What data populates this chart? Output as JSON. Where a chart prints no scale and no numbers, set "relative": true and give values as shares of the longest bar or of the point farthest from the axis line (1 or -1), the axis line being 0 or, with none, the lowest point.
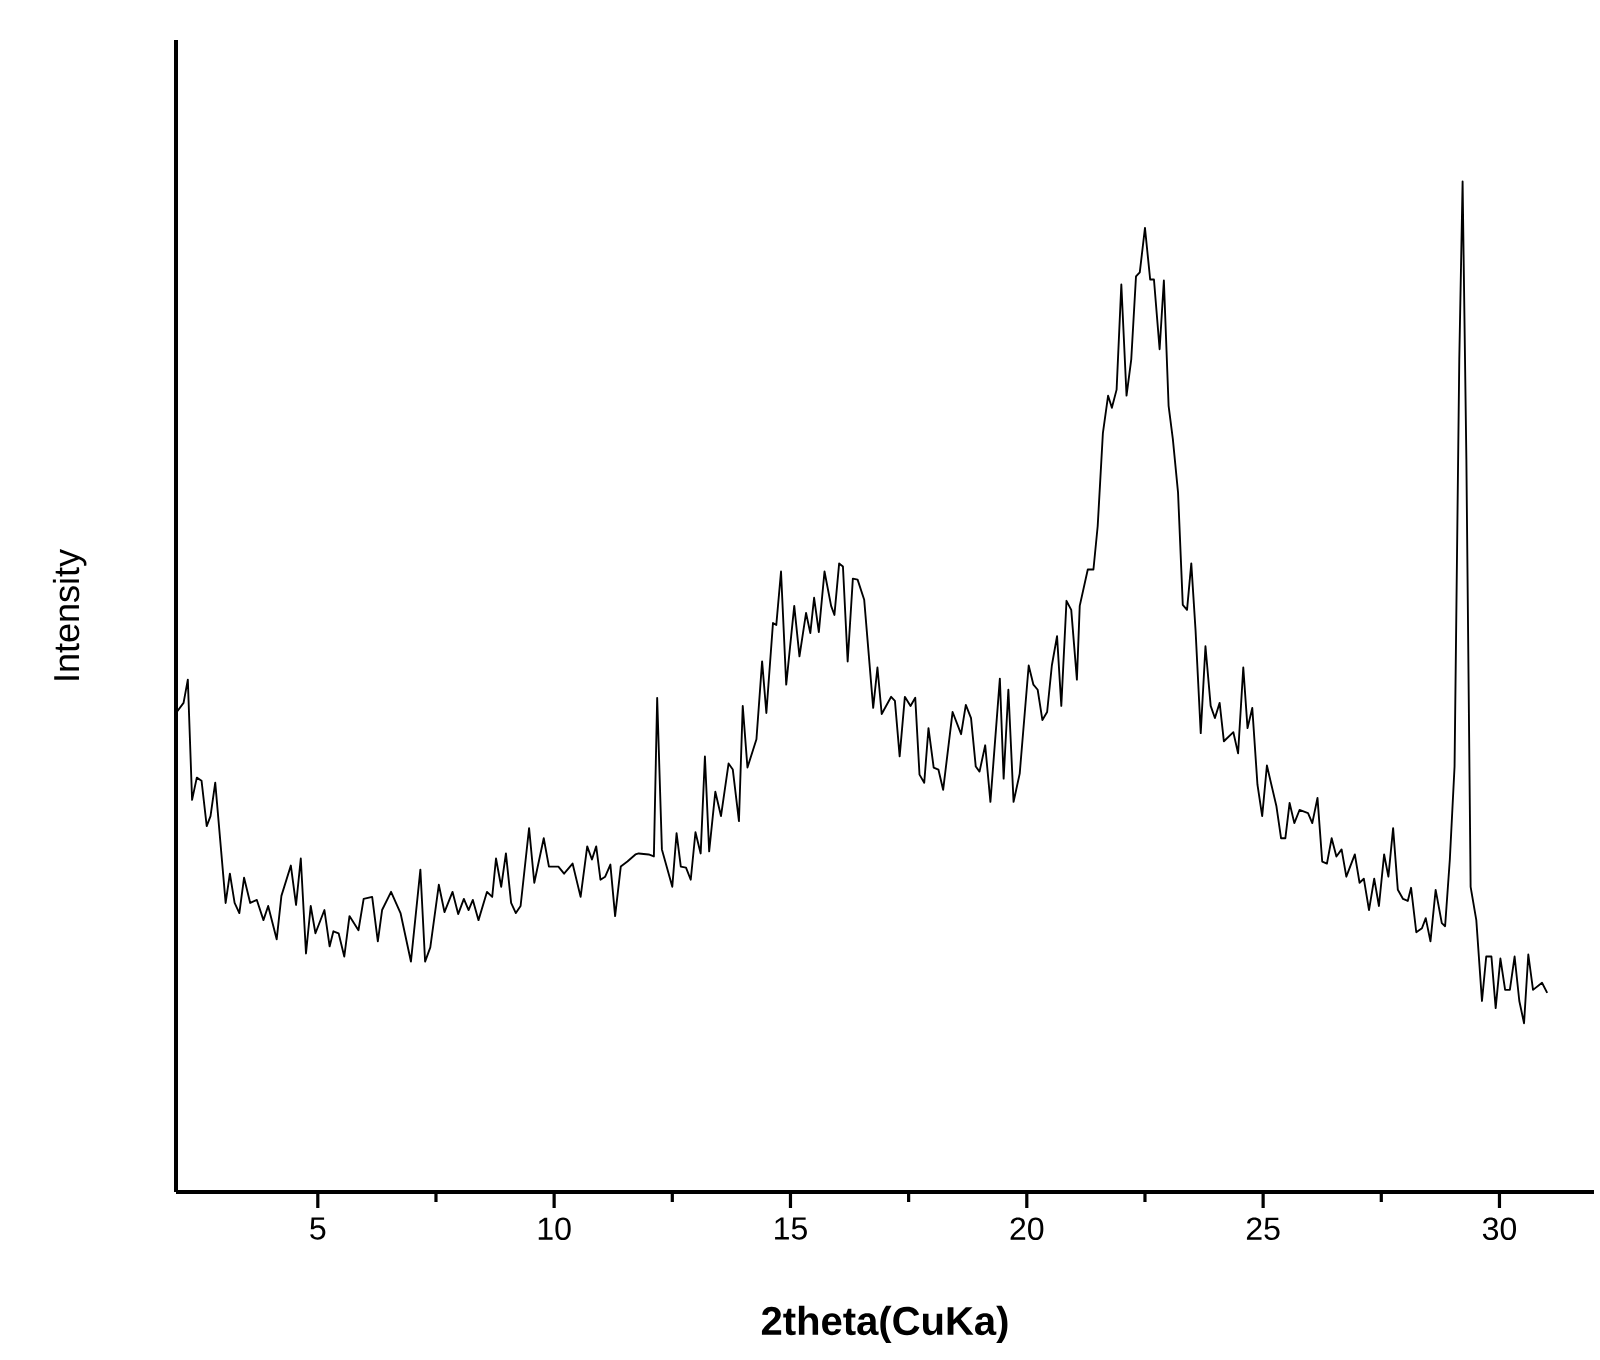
{
  "chart_data": {
    "type": "line",
    "relative": true,
    "xlabel": "2theta(CuKa)",
    "ylabel": "Intensity",
    "xlim": [
      2,
      32
    ],
    "xticks": [
      5,
      10,
      15,
      20,
      25,
      30
    ],
    "series": [
      {
        "color": "#000000",
        "x": [
          2.0,
          2.16,
          2.25,
          2.34,
          2.44,
          2.54,
          2.65,
          2.73,
          2.83,
          3.05,
          3.14,
          3.24,
          3.34,
          3.44,
          3.57,
          3.71,
          3.85,
          3.95,
          4.13,
          4.23,
          4.43,
          4.54,
          4.64,
          4.75,
          4.85,
          4.95,
          5.14,
          5.25,
          5.33,
          5.44,
          5.56,
          5.67,
          5.86,
          5.97,
          6.15,
          6.27,
          6.36,
          6.55,
          6.75,
          6.97,
          7.17,
          7.27,
          7.38,
          7.56,
          7.68,
          7.85,
          7.97,
          8.09,
          8.19,
          8.28,
          8.4,
          8.58,
          8.69,
          8.77,
          8.88,
          8.98,
          9.09,
          9.19,
          9.29,
          9.47,
          9.58,
          9.78,
          9.89,
          10.09,
          10.21,
          10.39,
          10.56,
          10.7,
          10.8,
          10.89,
          10.98,
          11.08,
          11.19,
          11.29,
          11.41,
          11.55,
          11.72,
          11.79,
          12.0,
          12.11,
          12.18,
          12.28,
          12.5,
          12.59,
          12.68,
          12.79,
          12.89,
          12.99,
          13.1,
          13.19,
          13.28,
          13.41,
          13.53,
          13.69,
          13.78,
          13.91,
          13.99,
          14.09,
          14.28,
          14.4,
          14.49,
          14.63,
          14.7,
          14.8,
          14.91,
          15.08,
          15.19,
          15.33,
          15.42,
          15.5,
          15.6,
          15.72,
          15.86,
          15.93,
          16.03,
          16.11,
          16.21,
          16.32,
          16.42,
          16.56,
          16.75,
          16.84,
          16.93,
          17.13,
          17.21,
          17.31,
          17.42,
          17.54,
          17.64,
          17.73,
          17.83,
          17.92,
          18.03,
          18.13,
          18.23,
          18.43,
          18.61,
          18.71,
          18.82,
          18.92,
          19.0,
          19.12,
          19.23,
          19.43,
          19.51,
          19.61,
          19.72,
          19.85,
          20.04,
          20.14,
          20.23,
          20.33,
          20.43,
          20.53,
          20.64,
          20.73,
          20.84,
          20.94,
          21.06,
          21.12,
          21.29,
          21.41,
          21.5,
          21.61,
          21.72,
          21.8,
          21.9,
          22.0,
          22.11,
          22.21,
          22.31,
          22.39,
          22.5,
          22.61,
          22.69,
          22.81,
          22.9,
          23.0,
          23.09,
          23.2,
          23.3,
          23.39,
          23.48,
          23.57,
          23.68,
          23.78,
          23.89,
          23.98,
          24.08,
          24.17,
          24.37,
          24.47,
          24.58,
          24.67,
          24.77,
          24.88,
          24.98,
          25.08,
          25.28,
          25.38,
          25.47,
          25.56,
          25.66,
          25.77,
          25.95,
          26.04,
          26.15,
          26.25,
          26.35,
          26.45,
          26.55,
          26.66,
          26.76,
          26.94,
          27.04,
          27.13,
          27.24,
          27.35,
          27.45,
          27.56,
          27.65,
          27.75,
          27.85,
          27.96,
          28.06,
          28.13,
          28.24,
          28.36,
          28.44,
          28.54,
          28.65,
          28.78,
          28.85,
          28.95,
          29.05,
          29.15,
          29.22,
          29.3,
          29.39,
          29.51,
          29.63,
          29.72,
          29.83,
          29.92,
          30.02,
          30.12,
          30.22,
          30.32,
          30.42,
          30.52,
          30.61,
          30.71,
          30.9,
          31.01
        ],
        "values": [
          0.474,
          0.484,
          0.507,
          0.388,
          0.41,
          0.407,
          0.362,
          0.372,
          0.405,
          0.286,
          0.315,
          0.286,
          0.276,
          0.311,
          0.286,
          0.289,
          0.269,
          0.283,
          0.25,
          0.293,
          0.323,
          0.284,
          0.33,
          0.236,
          0.283,
          0.256,
          0.279,
          0.243,
          0.258,
          0.256,
          0.233,
          0.273,
          0.259,
          0.29,
          0.292,
          0.248,
          0.279,
          0.297,
          0.276,
          0.228,
          0.319,
          0.228,
          0.242,
          0.304,
          0.277,
          0.297,
          0.275,
          0.29,
          0.279,
          0.289,
          0.269,
          0.297,
          0.292,
          0.33,
          0.302,
          0.335,
          0.286,
          0.276,
          0.283,
          0.36,
          0.306,
          0.35,
          0.322,
          0.322,
          0.315,
          0.325,
          0.292,
          0.342,
          0.329,
          0.342,
          0.309,
          0.312,
          0.324,
          0.273,
          0.322,
          0.327,
          0.334,
          0.335,
          0.334,
          0.332,
          0.489,
          0.339,
          0.302,
          0.355,
          0.322,
          0.321,
          0.309,
          0.356,
          0.335,
          0.431,
          0.337,
          0.396,
          0.372,
          0.424,
          0.418,
          0.367,
          0.481,
          0.42,
          0.448,
          0.525,
          0.474,
          0.563,
          0.561,
          0.614,
          0.502,
          0.58,
          0.53,
          0.573,
          0.553,
          0.588,
          0.554,
          0.614,
          0.58,
          0.571,
          0.622,
          0.619,
          0.525,
          0.607,
          0.606,
          0.586,
          0.479,
          0.519,
          0.473,
          0.49,
          0.486,
          0.431,
          0.49,
          0.481,
          0.489,
          0.413,
          0.405,
          0.459,
          0.42,
          0.418,
          0.398,
          0.475,
          0.453,
          0.482,
          0.469,
          0.421,
          0.416,
          0.442,
          0.386,
          0.508,
          0.409,
          0.497,
          0.386,
          0.414,
          0.521,
          0.502,
          0.497,
          0.467,
          0.475,
          0.521,
          0.55,
          0.481,
          0.585,
          0.576,
          0.507,
          0.58,
          0.616,
          0.616,
          0.659,
          0.751,
          0.788,
          0.776,
          0.794,
          0.898,
          0.788,
          0.824,
          0.906,
          0.91,
          0.954,
          0.903,
          0.903,
          0.834,
          0.902,
          0.778,
          0.745,
          0.692,
          0.581,
          0.576,
          0.622,
          0.556,
          0.454,
          0.54,
          0.481,
          0.469,
          0.484,
          0.446,
          0.455,
          0.434,
          0.519,
          0.459,
          0.479,
          0.403,
          0.372,
          0.422,
          0.382,
          0.35,
          0.35,
          0.385,
          0.365,
          0.378,
          0.375,
          0.365,
          0.39,
          0.327,
          0.325,
          0.35,
          0.332,
          0.339,
          0.312,
          0.334,
          0.306,
          0.31,
          0.279,
          0.31,
          0.283,
          0.334,
          0.312,
          0.36,
          0.299,
          0.29,
          0.288,
          0.301,
          0.257,
          0.261,
          0.271,
          0.248,
          0.299,
          0.266,
          0.263,
          0.329,
          0.421,
          0.824,
          1,
          0.725,
          0.302,
          0.269,
          0.189,
          0.233,
          0.233,
          0.182,
          0.231,
          0.2,
          0.2,
          0.233,
          0.189,
          0.167,
          0.235,
          0.2,
          0.207,
          0.197
        ]
      }
    ]
  }
}
